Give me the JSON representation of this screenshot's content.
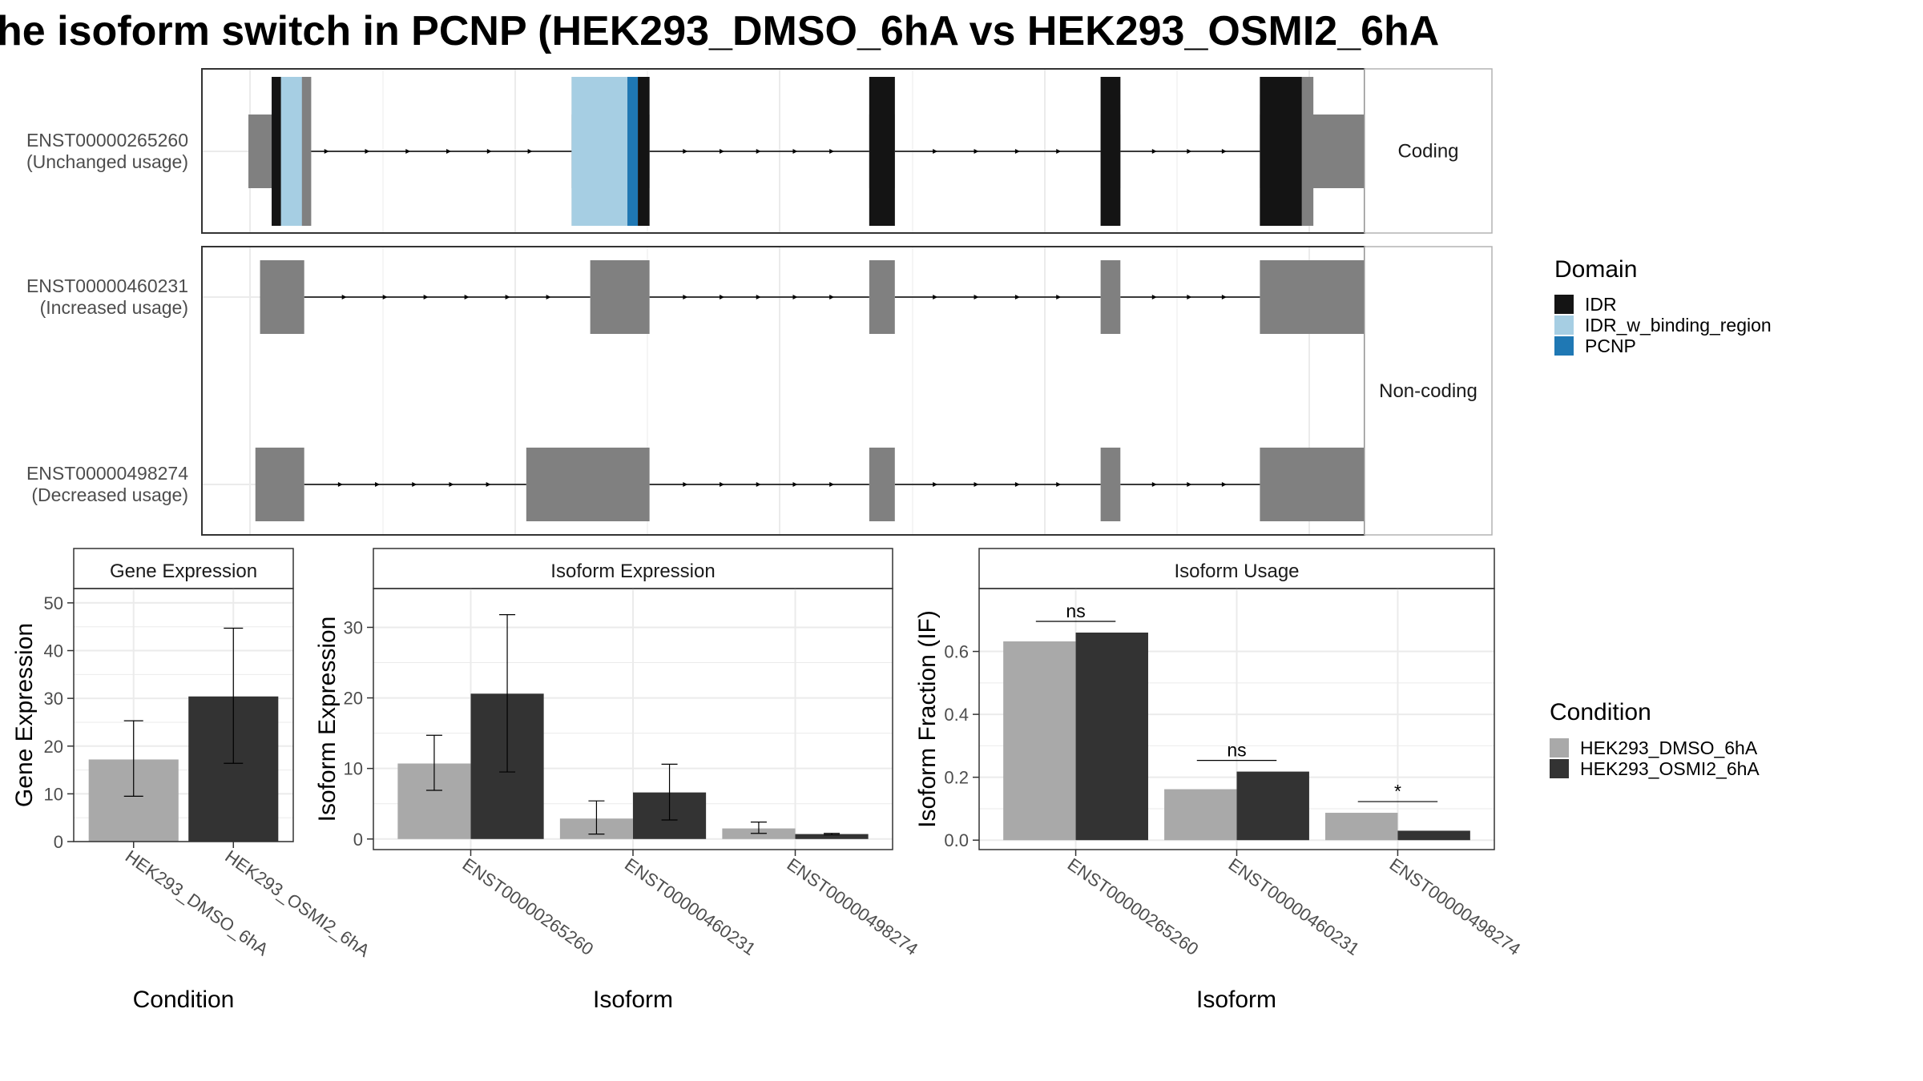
{
  "title": "he isoform switch in PCNP (HEK293_DMSO_6hA vs HEK293_OSMI2_6hA",
  "colors": {
    "exon": "#808080",
    "intron": "#000000",
    "IDR": "#141414",
    "IDR_w_binding_region": "#a6cee3",
    "PCNP": "#1f78b4",
    "HEK293_DMSO_6hA": "#a9a9a9",
    "HEK293_OSMI2_6hA": "#333333",
    "strip_bg": "#ffffff",
    "grid": "#ebebeb"
  },
  "transcripts": {
    "facets": [
      "Coding",
      "Non-coding"
    ],
    "xlim": [
      0,
      1000
    ],
    "items": [
      {
        "id": "ENST00000265260",
        "usage": "(Unchanged usage)",
        "facet": "Coding",
        "exons": [
          [
            40,
            73
          ],
          [
            318,
            385
          ],
          [
            574,
            596
          ],
          [
            773,
            790
          ],
          [
            910,
            1049
          ]
        ],
        "cds": [
          [
            60,
            94
          ],
          [
            318,
            385
          ],
          [
            574,
            596
          ],
          [
            773,
            790
          ],
          [
            910,
            956
          ]
        ],
        "domains": [
          {
            "type": "IDR",
            "start": 60,
            "end": 68
          },
          {
            "type": "IDR_w_binding_region",
            "start": 68,
            "end": 86
          },
          {
            "type": "IDR_w_binding_region",
            "start": 318,
            "end": 366
          },
          {
            "type": "PCNP",
            "start": 366,
            "end": 375
          },
          {
            "type": "IDR",
            "start": 375,
            "end": 385
          },
          {
            "type": "IDR",
            "start": 574,
            "end": 596
          },
          {
            "type": "IDR",
            "start": 773,
            "end": 790
          },
          {
            "type": "IDR",
            "start": 910,
            "end": 946
          }
        ]
      },
      {
        "id": "ENST00000460231",
        "usage": "(Increased usage)",
        "facet": "Non-coding",
        "exons": [
          [
            50,
            88
          ],
          [
            334,
            385
          ],
          [
            574,
            596
          ],
          [
            773,
            790
          ],
          [
            910,
            1049
          ]
        ],
        "cds": [],
        "domains": []
      },
      {
        "id": "ENST00000498274",
        "usage": "(Decreased usage)",
        "facet": "Non-coding",
        "exons": [
          [
            46,
            88
          ],
          [
            279,
            385
          ],
          [
            574,
            596
          ],
          [
            773,
            790
          ],
          [
            910,
            1049
          ]
        ],
        "cds": [],
        "domains": []
      }
    ]
  },
  "domain_legend": {
    "title": "Domain",
    "entries": [
      "IDR",
      "IDR_w_binding_region",
      "PCNP"
    ]
  },
  "condition_legend": {
    "title": "Condition",
    "entries": [
      "HEK293_DMSO_6hA",
      "HEK293_OSMI2_6hA"
    ]
  },
  "chart_data": [
    {
      "type": "bar",
      "title": "Gene Expression",
      "xlabel": "Condition",
      "ylabel": "Gene Expression",
      "categories": [
        "HEK293_DMSO_6hA",
        "HEK293_OSMI2_6hA"
      ],
      "values": [
        17.2,
        30.4
      ],
      "error": [
        [
          9.5,
          25.3
        ],
        [
          16.4,
          44.7
        ]
      ],
      "ylim": [
        0,
        53
      ],
      "yticks": [
        0,
        10,
        20,
        30,
        40,
        50
      ]
    },
    {
      "type": "bar",
      "title": "Isoform Expression",
      "xlabel": "Isoform",
      "ylabel": "Isoform Expression",
      "categories": [
        "ENST00000265260",
        "ENST00000460231",
        "ENST00000498274"
      ],
      "series": [
        {
          "name": "HEK293_DMSO_6hA",
          "values": [
            10.7,
            2.9,
            1.5
          ],
          "error": [
            [
              6.9,
              14.7
            ],
            [
              0.7,
              5.4
            ],
            [
              0.8,
              2.4
            ]
          ]
        },
        {
          "name": "HEK293_OSMI2_6hA",
          "values": [
            20.6,
            6.6,
            0.7
          ],
          "error": [
            [
              9.5,
              31.8
            ],
            [
              2.7,
              10.6
            ],
            [
              0.6,
              0.8
            ]
          ]
        }
      ],
      "ylim": [
        -1.5,
        35.5
      ],
      "yticks": [
        0,
        10,
        20,
        30
      ]
    },
    {
      "type": "bar",
      "title": "Isoform Usage",
      "xlabel": "Isoform",
      "ylabel": "Isoform Fraction (IF)",
      "categories": [
        "ENST00000265260",
        "ENST00000460231",
        "ENST00000498274"
      ],
      "series": [
        {
          "name": "HEK293_DMSO_6hA",
          "values": [
            0.632,
            0.162,
            0.087
          ]
        },
        {
          "name": "HEK293_OSMI2_6hA",
          "values": [
            0.66,
            0.218,
            0.03
          ]
        }
      ],
      "significance": [
        "ns",
        "ns",
        "*"
      ],
      "ylim": [
        -0.03,
        0.8
      ],
      "yticks": [
        0.0,
        0.2,
        0.4,
        0.6
      ],
      "ytick_labels": [
        "0.0",
        "0.2",
        "0.4",
        "0.6"
      ]
    }
  ]
}
